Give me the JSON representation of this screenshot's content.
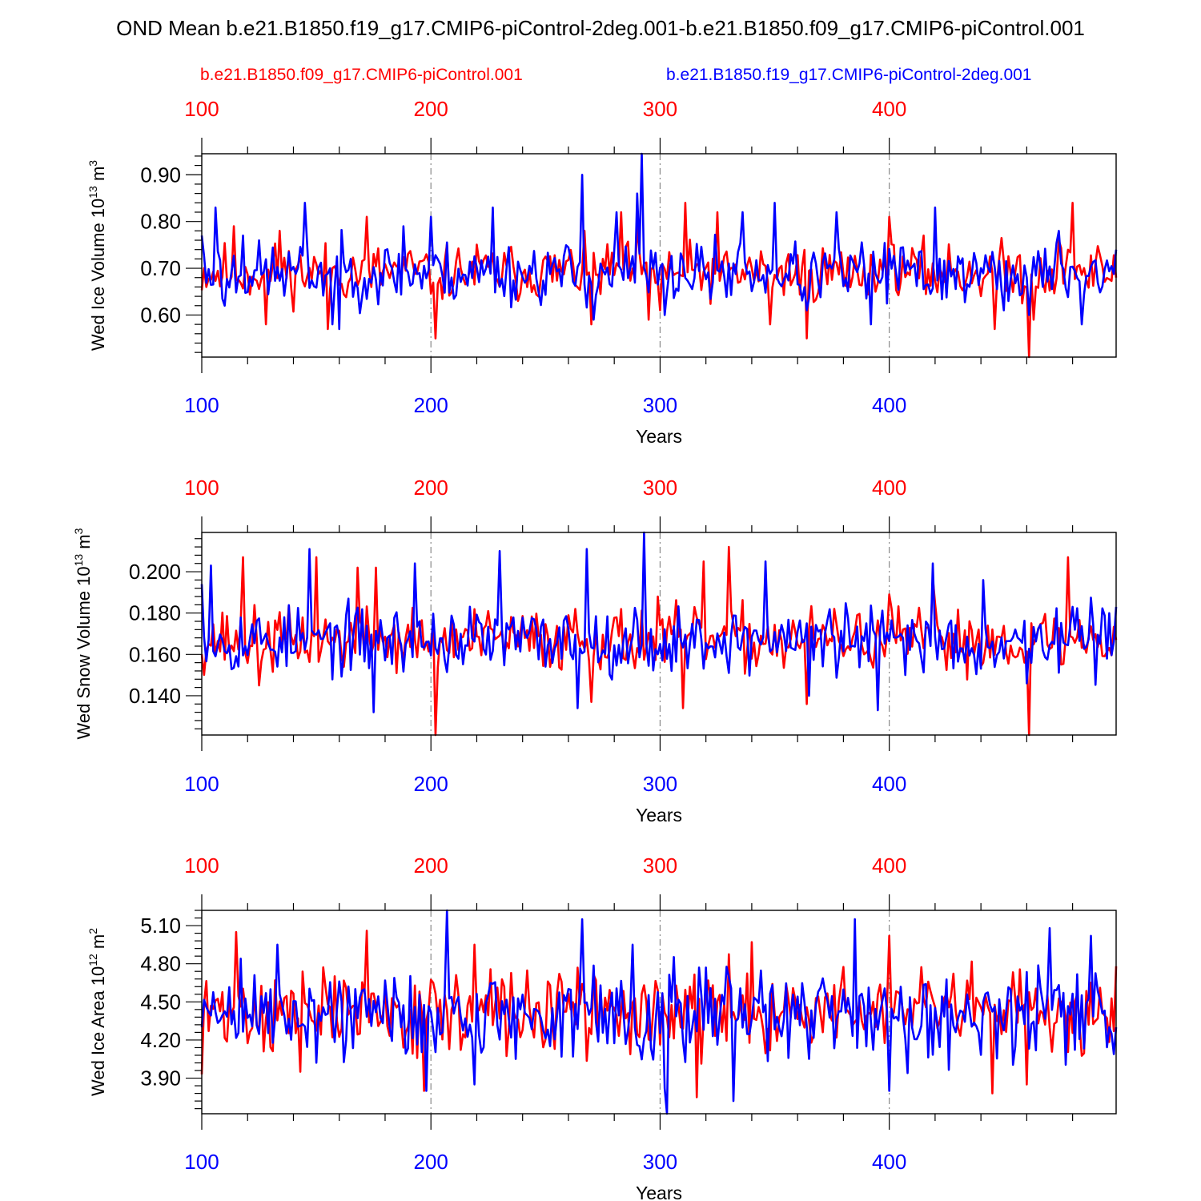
{
  "title": "OND Mean b.e21.B1850.f19_g17.CMIP6-piControl-2deg.001-b.e21.B1850.f09_g17.CMIP6-piControl.001",
  "legend": {
    "red_case": "b.e21.B1850.f09_g17.CMIP6-piControl.001",
    "blue_case": "b.e21.B1850.f19_g17.CMIP6-piControl-2deg.001"
  },
  "colors": {
    "red": "#ff0000",
    "blue": "#0000ff",
    "grid": "#888888",
    "axis": "#000000"
  },
  "chart_data": [
    {
      "type": "line",
      "ylabel": "Wed Ice Volume 10",
      "ylabel_exp": "13",
      "ylabel_unit": " m",
      "ylabel_unit_exp": "3",
      "xlabel": "Years",
      "xlim": [
        100,
        499
      ],
      "ylim": [
        0.51,
        0.945
      ],
      "yticks": [
        0.6,
        0.7,
        0.8,
        0.9
      ],
      "ytick_labels": [
        "0.60",
        "0.70",
        "0.80",
        "0.90"
      ],
      "xticks": [
        100,
        200,
        300,
        400
      ],
      "xtick_labels": [
        "100",
        "200",
        "300",
        "400"
      ],
      "series": [
        {
          "name": "b.e21.B1850.f09_g17.CMIP6-piControl.001",
          "color": "#ff0000",
          "x_start": 100,
          "base": 0.692,
          "amp": 0.058,
          "seed": 11,
          "extremes": [
            [
              102,
              0.66
            ],
            [
              114,
              0.79
            ],
            [
              128,
              0.58
            ],
            [
              134,
              0.78
            ],
            [
              155,
              0.57
            ],
            [
              172,
              0.81
            ],
            [
              198,
              0.73
            ],
            [
              202,
              0.55
            ],
            [
              262,
              0.71
            ],
            [
              270,
              0.58
            ],
            [
              283,
              0.82
            ],
            [
              290,
              0.79
            ],
            [
              295,
              0.59
            ],
            [
              300,
              0.61
            ],
            [
              311,
              0.84
            ],
            [
              325,
              0.82
            ],
            [
              348,
              0.58
            ],
            [
              364,
              0.55
            ],
            [
              400,
              0.81
            ],
            [
              446,
              0.57
            ],
            [
              461,
              0.51
            ],
            [
              463,
              0.59
            ],
            [
              474,
              0.76
            ],
            [
              480,
              0.84
            ],
            [
              499,
              0.68
            ]
          ]
        },
        {
          "name": "b.e21.B1850.f19_g17.CMIP6-piControl-2deg.001",
          "color": "#0000ff",
          "x_start": 100,
          "base": 0.69,
          "amp": 0.062,
          "seed": 23,
          "extremes": [
            [
              100,
              0.77
            ],
            [
              106,
              0.83
            ],
            [
              110,
              0.62
            ],
            [
              118,
              0.77
            ],
            [
              145,
              0.84
            ],
            [
              157,
              0.58
            ],
            [
              160,
              0.57
            ],
            [
              188,
              0.79
            ],
            [
              200,
              0.81
            ],
            [
              227,
              0.83
            ],
            [
              266,
              0.9
            ],
            [
              271,
              0.59
            ],
            [
              281,
              0.82
            ],
            [
              290,
              0.86
            ],
            [
              292,
              0.945
            ],
            [
              302,
              0.6
            ],
            [
              336,
              0.82
            ],
            [
              350,
              0.84
            ],
            [
              364,
              0.61
            ],
            [
              377,
              0.82
            ],
            [
              392,
              0.58
            ],
            [
              420,
              0.83
            ],
            [
              450,
              0.61
            ],
            [
              461,
              0.6
            ],
            [
              474,
              0.78
            ],
            [
              484,
              0.58
            ],
            [
              499,
              0.74
            ]
          ]
        }
      ]
    },
    {
      "type": "line",
      "ylabel": "Wed Snow Volume 10",
      "ylabel_exp": "13",
      "ylabel_unit": " m",
      "ylabel_unit_exp": "3",
      "xlabel": "Years",
      "xlim": [
        100,
        499
      ],
      "ylim": [
        0.121,
        0.219
      ],
      "yticks": [
        0.14,
        0.16,
        0.18,
        0.2
      ],
      "ytick_labels": [
        "0.140",
        "0.160",
        "0.180",
        "0.200"
      ],
      "xticks": [
        100,
        200,
        300,
        400
      ],
      "xtick_labels": [
        "100",
        "200",
        "300",
        "400"
      ],
      "series": [
        {
          "name": "b.e21.B1850.f09_g17.CMIP6-piControl.001",
          "color": "#ff0000",
          "x_start": 100,
          "base": 0.167,
          "amp": 0.014,
          "seed": 37,
          "extremes": [
            [
              118,
              0.207
            ],
            [
              125,
              0.145
            ],
            [
              150,
              0.207
            ],
            [
              168,
              0.202
            ],
            [
              176,
              0.202
            ],
            [
              202,
              0.121
            ],
            [
              263,
              0.182
            ],
            [
              270,
              0.137
            ],
            [
              299,
              0.188
            ],
            [
              310,
              0.134
            ],
            [
              319,
              0.205
            ],
            [
              330,
              0.212
            ],
            [
              364,
              0.136
            ],
            [
              400,
              0.189
            ],
            [
              419,
              0.197
            ],
            [
              461,
              0.121
            ],
            [
              478,
              0.207
            ],
            [
              499,
              0.167
            ]
          ]
        },
        {
          "name": "b.e21.B1850.f19_g17.CMIP6-piControl-2deg.001",
          "color": "#0000ff",
          "x_start": 100,
          "base": 0.167,
          "amp": 0.015,
          "seed": 53,
          "extremes": [
            [
              100,
              0.194
            ],
            [
              104,
              0.203
            ],
            [
              147,
              0.211
            ],
            [
              175,
              0.132
            ],
            [
              193,
              0.204
            ],
            [
              230,
              0.21
            ],
            [
              264,
              0.134
            ],
            [
              268,
              0.211
            ],
            [
              293,
              0.219
            ],
            [
              300,
              0.165
            ],
            [
              346,
              0.205
            ],
            [
              365,
              0.14
            ],
            [
              395,
              0.133
            ],
            [
              419,
              0.204
            ],
            [
              441,
              0.196
            ],
            [
              460,
              0.146
            ],
            [
              480,
              0.183
            ],
            [
              499,
              0.183
            ]
          ]
        }
      ]
    },
    {
      "type": "line",
      "ylabel": "Wed Ice Area 10",
      "ylabel_exp": "12",
      "ylabel_unit": " m",
      "ylabel_unit_exp": "2",
      "xlabel": "Years",
      "xlim": [
        100,
        499
      ],
      "ylim": [
        3.62,
        5.22
      ],
      "yticks": [
        3.9,
        4.2,
        4.5,
        4.8,
        5.1
      ],
      "ytick_labels": [
        "3.90",
        "4.20",
        "4.50",
        "4.80",
        "5.10"
      ],
      "xticks": [
        100,
        200,
        300,
        400
      ],
      "xtick_labels": [
        "100",
        "200",
        "300",
        "400"
      ],
      "series": [
        {
          "name": "b.e21.B1850.f09_g17.CMIP6-piControl.001",
          "color": "#ff0000",
          "x_start": 100,
          "base": 4.42,
          "amp": 0.3,
          "seed": 71,
          "extremes": [
            [
              100,
              3.93
            ],
            [
              115,
              5.05
            ],
            [
              143,
              3.95
            ],
            [
              172,
              5.06
            ],
            [
              197,
              3.8
            ],
            [
              219,
              4.95
            ],
            [
              316,
              3.75
            ],
            [
              340,
              4.97
            ],
            [
              400,
              5.02
            ],
            [
              445,
              3.78
            ],
            [
              460,
              3.85
            ],
            [
              499,
              4.78
            ]
          ]
        },
        {
          "name": "b.e21.B1850.f19_g17.CMIP6-piControl-2deg.001",
          "color": "#0000ff",
          "x_start": 100,
          "base": 4.4,
          "amp": 0.33,
          "seed": 89,
          "extremes": [
            [
              100,
              4.3
            ],
            [
              117,
              4.84
            ],
            [
              133,
              4.95
            ],
            [
              198,
              3.8
            ],
            [
              207,
              5.22
            ],
            [
              219,
              3.85
            ],
            [
              266,
              5.15
            ],
            [
              288,
              4.95
            ],
            [
              302,
              3.82
            ],
            [
              303,
              3.62
            ],
            [
              320,
              4.77
            ],
            [
              332,
              3.72
            ],
            [
              385,
              5.15
            ],
            [
              400,
              3.8
            ],
            [
              470,
              5.08
            ],
            [
              488,
              5.02
            ],
            [
              497,
              4.25
            ],
            [
              499,
              4.3
            ]
          ]
        }
      ]
    }
  ]
}
